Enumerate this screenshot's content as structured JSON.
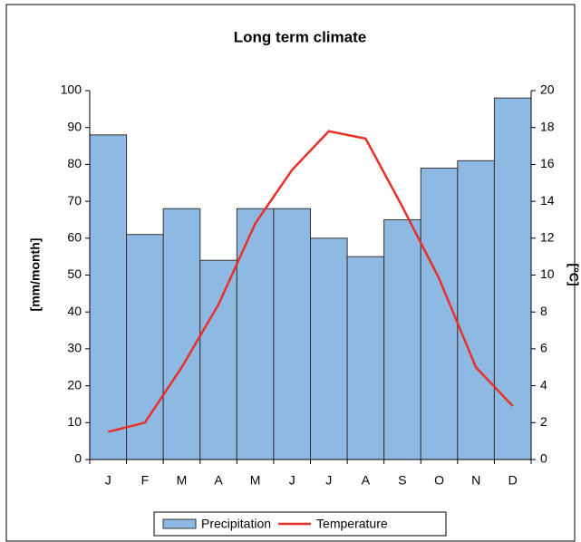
{
  "chart_data": {
    "type": "bar+line",
    "title": "Long term climate",
    "y_label": "[mm/month]",
    "y2_label": "[°C]",
    "categories": [
      "J",
      "F",
      "M",
      "A",
      "M",
      "J",
      "J",
      "A",
      "S",
      "O",
      "N",
      "D"
    ],
    "series": [
      {
        "name": "Precipitation",
        "type": "bar",
        "color": "#8db9e3",
        "values": [
          88,
          61,
          68,
          54,
          68,
          68,
          60,
          55,
          65,
          79,
          81,
          98
        ]
      },
      {
        "name": "Temperature",
        "type": "line",
        "axis": "y2",
        "color": "#e8302a",
        "values": [
          1.5,
          2.0,
          5.0,
          8.4,
          12.8,
          15.7,
          17.8,
          17.4,
          13.7,
          9.8,
          5.0,
          2.9
        ]
      }
    ],
    "ylim": [
      0,
      100
    ],
    "yticks": [
      0,
      10,
      20,
      30,
      40,
      50,
      60,
      70,
      80,
      90,
      100
    ],
    "y2lim": [
      0,
      20
    ],
    "y2ticks": [
      0,
      2,
      4,
      6,
      8,
      10,
      12,
      14,
      16,
      18,
      20
    ],
    "legend": "bottom"
  }
}
